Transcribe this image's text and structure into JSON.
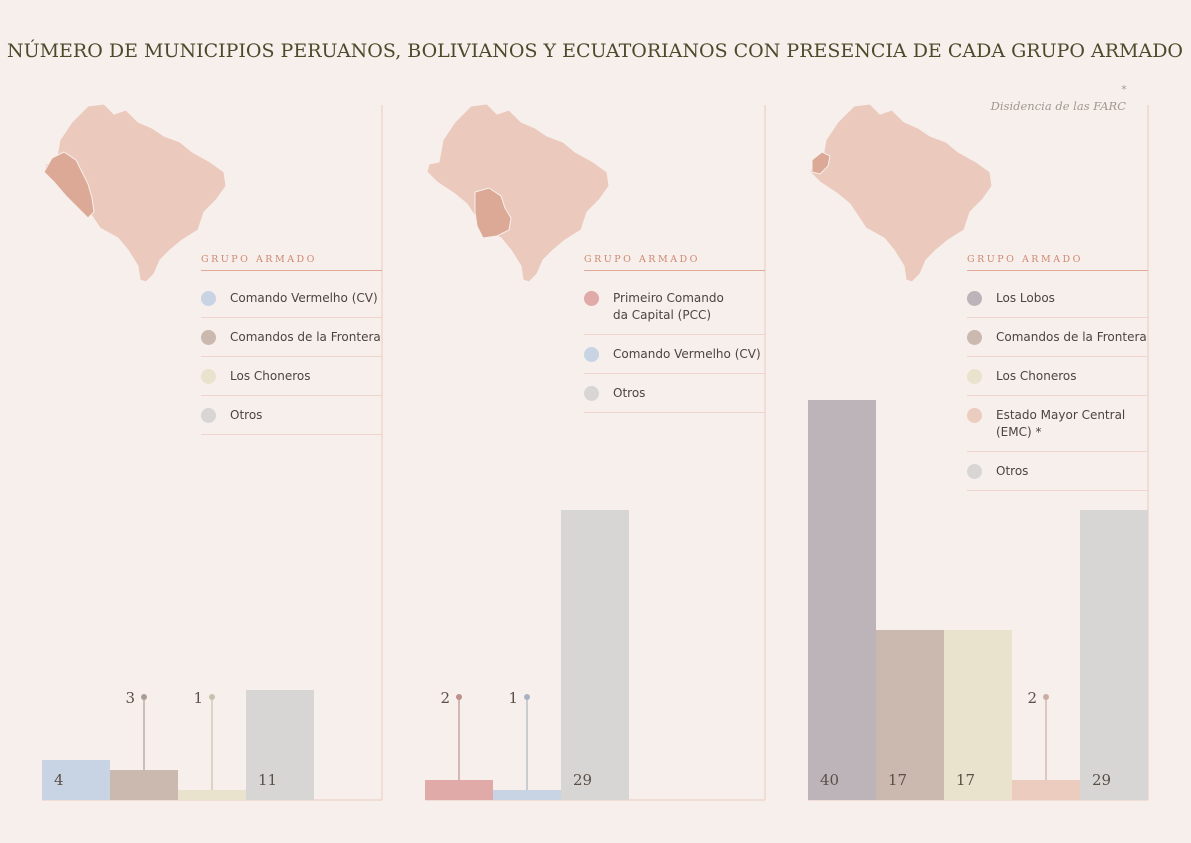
{
  "title": "NÚMERO DE MUNICIPIOS PERUANOS, BOLIVIANOS Y ECUATORIANOS CON PRESENCIA DE CADA GRUPO ARMADO",
  "note": {
    "symbol": "*",
    "text": "Disidencia de las FARC"
  },
  "chart_data": [
    {
      "type": "bar",
      "legend_title": "GRUPO ARMADO",
      "categories": [
        "Comando Vermelho (CV)",
        "Comandos de la Frontera",
        "Los Choneros",
        "Otros"
      ],
      "values": [
        4,
        3,
        1,
        11
      ],
      "colors": [
        "#c8d3e4",
        "#cbb8ae",
        "#e9e3cd",
        "#d8d6d4"
      ]
    },
    {
      "type": "bar",
      "legend_title": "GRUPO ARMADO",
      "categories": [
        "Primeiro Comando\nda Capital (PCC)",
        "Comando Vermelho (CV)",
        "Otros"
      ],
      "values": [
        2,
        1,
        29
      ],
      "colors": [
        "#dfaaa8",
        "#c8d3e4",
        "#d8d6d4"
      ]
    },
    {
      "type": "bar",
      "legend_title": "GRUPO ARMADO",
      "categories": [
        "Los Lobos",
        "Comandos de la Frontera",
        "Los Choneros",
        "Estado Mayor Central\n(EMC) *",
        "Otros"
      ],
      "values": [
        40,
        17,
        17,
        2,
        29
      ],
      "colors": [
        "#bcb4b9",
        "#cbb8ae",
        "#e9e3cd",
        "#ecccbe",
        "#d8d6d4"
      ]
    }
  ]
}
